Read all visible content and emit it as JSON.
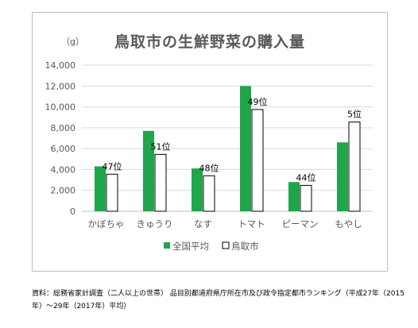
{
  "chart_data": {
    "type": "bar",
    "title": "鳥取市の生鮮野菜の購入量",
    "ylabel": "（g）",
    "ylim": [
      0,
      14000
    ],
    "yticks": [
      "0",
      "2,000",
      "4,000",
      "6,000",
      "8,000",
      "10,000",
      "12,000",
      "14,000"
    ],
    "categories": [
      "かぼちゃ",
      "きゅうり",
      "なす",
      "トマト",
      "ピーマン",
      "もやし"
    ],
    "series": [
      {
        "name": "全国平均",
        "color": "#1fa64a",
        "values": [
          4300,
          7700,
          4100,
          12000,
          2800,
          6600
        ]
      },
      {
        "name": "鳥取市",
        "color": "#ffffff",
        "values": [
          3550,
          5450,
          3400,
          9750,
          2480,
          8550
        ]
      }
    ],
    "annotations": [
      "47位",
      "51位",
      "48位",
      "49位",
      "44位",
      "5位"
    ],
    "legend": "bottom",
    "grid": true
  },
  "source": "資料：総務省家計調査（二人以上の世帯）  品目別都道府県庁所在市及び政令指定都市ランキング（平成27年（2015年）～29年（2017年）平均）"
}
